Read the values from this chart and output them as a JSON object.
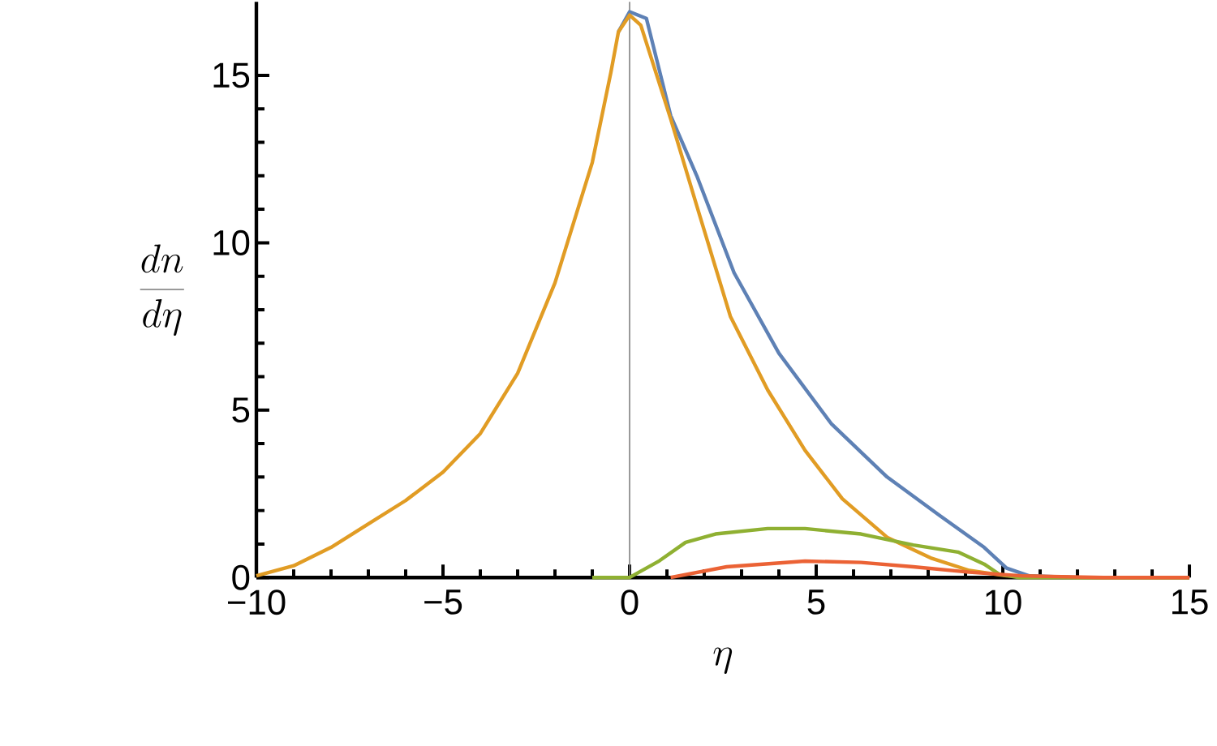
{
  "chart_data": {
    "type": "line",
    "xlabel": "\\eta",
    "ylabel": "\\frac{dn}{d\\eta}",
    "xlim": [
      -10,
      15
    ],
    "ylim": [
      0,
      17.2
    ],
    "xticks": [
      {
        "value": -10,
        "label": "−10"
      },
      {
        "value": -5,
        "label": "−5"
      },
      0,
      5,
      10,
      15
    ],
    "yticks": [
      0,
      5,
      10,
      15
    ],
    "grid": false,
    "marker": "none",
    "line_style": "solid",
    "ref_lines": [
      {
        "axis": "x",
        "value": 0,
        "color": "#808080"
      }
    ],
    "series": [
      {
        "color": "#5e81b5",
        "x": [
          -0.3,
          0,
          0.45,
          1.1,
          1.8,
          2.8,
          4,
          5.4,
          6.9,
          8.3,
          8.9,
          9.5,
          10.1,
          10.7,
          12,
          15
        ],
        "values": [
          16.3,
          16.9,
          16.7,
          13.8,
          12.0,
          9.1,
          6.7,
          4.6,
          3.0,
          1.86,
          1.38,
          0.9,
          0.28,
          0.05,
          0,
          0
        ]
      },
      {
        "color": "#e19c24",
        "x": [
          -10,
          -9,
          -8,
          -7,
          -6,
          -5,
          -4,
          -3,
          -2,
          -1,
          -0.5,
          -0.3,
          0,
          0.3,
          1.1,
          1.8,
          2.7,
          3.7,
          4.7,
          5.7,
          6.9,
          8.1,
          9.1,
          10.1,
          12,
          15
        ],
        "values": [
          0.05,
          0.35,
          0.9,
          1.6,
          2.3,
          3.15,
          4.3,
          6.1,
          8.8,
          12.4,
          15.1,
          16.3,
          16.8,
          16.5,
          13.7,
          11.1,
          7.8,
          5.6,
          3.8,
          2.35,
          1.2,
          0.57,
          0.21,
          0.05,
          0,
          0
        ]
      },
      {
        "color": "#8fb032",
        "x": [
          -1,
          0,
          0.8,
          1.5,
          2.3,
          3.7,
          4.7,
          6.2,
          7.6,
          8.8,
          9.5,
          9.9,
          10.4,
          15
        ],
        "values": [
          0,
          0,
          0.5,
          1.05,
          1.3,
          1.46,
          1.46,
          1.3,
          0.97,
          0.76,
          0.4,
          0.1,
          0,
          0
        ]
      },
      {
        "color": "#eb6235",
        "x": [
          1.1,
          2.6,
          4.7,
          6.2,
          7.6,
          9.1,
          10.5,
          12.7,
          15
        ],
        "values": [
          0,
          0.32,
          0.49,
          0.45,
          0.32,
          0.16,
          0.05,
          0,
          0
        ]
      }
    ]
  }
}
